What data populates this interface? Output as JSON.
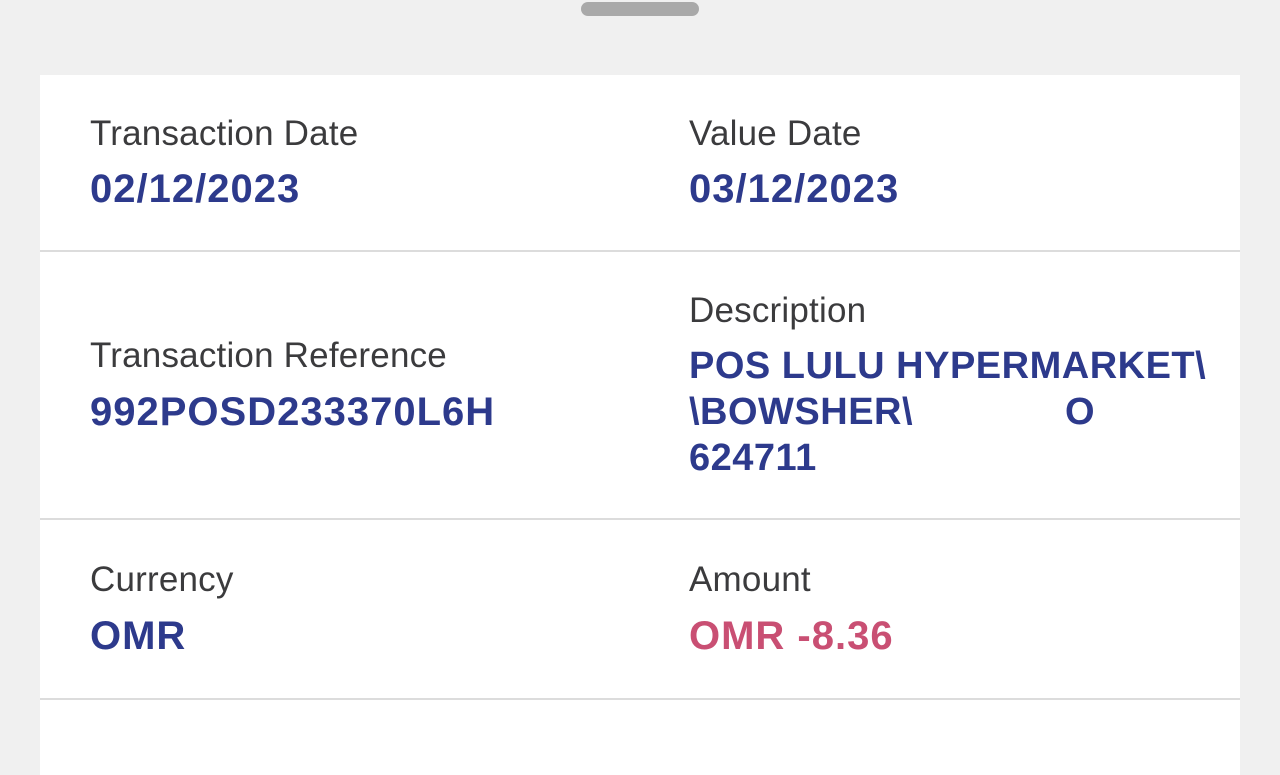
{
  "sheet": {
    "background_color": "#f0f0f0",
    "card_background_color": "#ffffff",
    "drag_handle_color": "#a9a9a9",
    "divider_color": "#dcdcdc"
  },
  "colors": {
    "label_text": "#3b3b3d",
    "value_blue": "#2d3a8c",
    "amount_negative_pink": "#c94f73"
  },
  "fields": {
    "transaction_date": {
      "label": "Transaction Date",
      "value": "02/12/2023"
    },
    "value_date": {
      "label": "Value Date",
      "value": "03/12/2023"
    },
    "transaction_reference": {
      "label": "Transaction Reference",
      "value": "992POSD233370L6H"
    },
    "description": {
      "label": "Description",
      "value_line1": "POS LULU HYPERMARKET\\",
      "value_line2_left": "\\BOWSHER\\",
      "value_line2_right": "O",
      "value_line3": "624711"
    },
    "currency": {
      "label": "Currency",
      "value": "OMR"
    },
    "amount": {
      "label": "Amount",
      "value": "OMR -8.36"
    }
  }
}
